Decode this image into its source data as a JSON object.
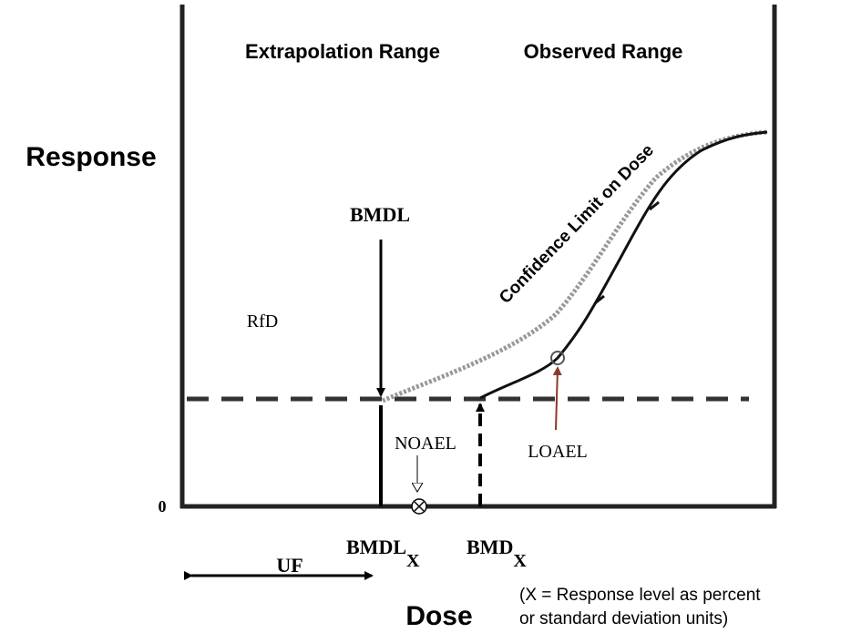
{
  "header": {
    "left_range": "Extrapolation Range",
    "right_range": "Observed Range"
  },
  "axes": {
    "y_label": "Response",
    "x_label": "Dose",
    "origin": "0"
  },
  "annotations": {
    "bmdl": "BMDL",
    "rfd": "RfD",
    "confidence": "Confidence Limit on Dose",
    "noael": "NOAEL",
    "loael": "LOAEL",
    "uf": "UF"
  },
  "x_labels": {
    "bmdl": "BMDL",
    "bmdl_sub": "X",
    "bmd": "BMD",
    "bmd_sub": "X"
  },
  "note": [
    "(X = Response level as percent",
    "or standard deviation units)"
  ]
}
